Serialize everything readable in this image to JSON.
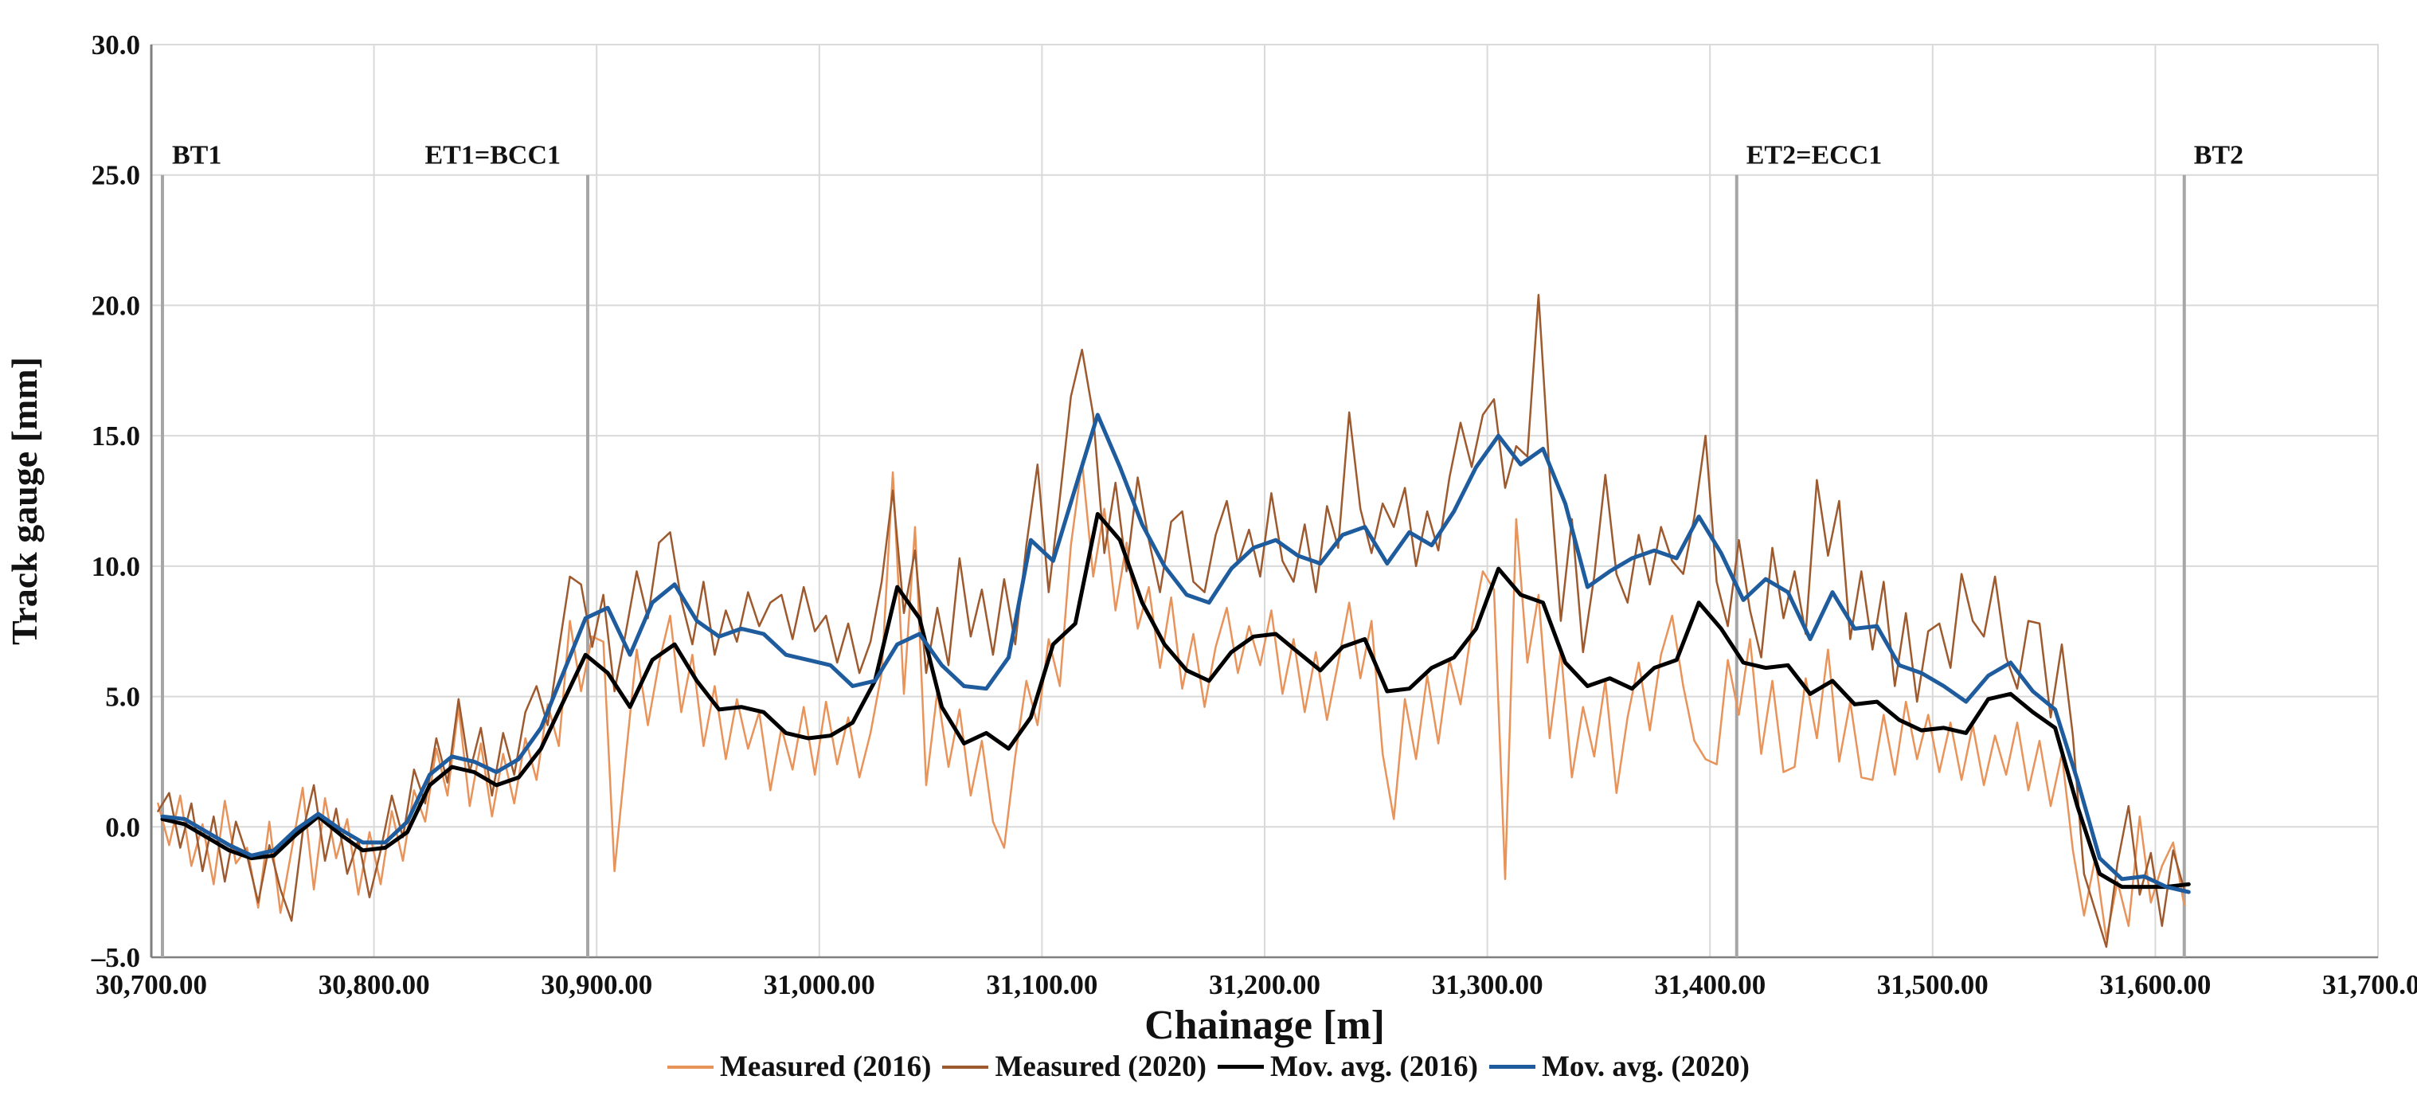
{
  "chart_data": {
    "type": "line",
    "title": "",
    "xlabel": "Chainage [m]",
    "ylabel": "Track gauge [mm]",
    "xlim": [
      30700,
      31700
    ],
    "ylim": [
      -5,
      30
    ],
    "x_tick_step": 100,
    "y_tick_step": 5,
    "grid": true,
    "legend_position": "bottom",
    "x_tick_labels": [
      "30,700.00",
      "30,800.00",
      "30,900.00",
      "31,000.00",
      "31,100.00",
      "31,200.00",
      "31,300.00",
      "31,400.00",
      "31,500.00",
      "31,600.00",
      "31,700.00"
    ],
    "y_tick_labels": [
      "30.0",
      "25.0",
      "20.0",
      "15.0",
      "10.0",
      "5.0",
      "0.0",
      "–5.0"
    ],
    "style": {
      "gridline_color": "#d9d9d9",
      "axis_line_color": "#7f7f7f",
      "marker_line_color": "#a6a6a6",
      "text_color": "#121212",
      "background": "#ffffff"
    },
    "markers": [
      {
        "label": "BT1",
        "x": 30705,
        "label_side": "right",
        "from_value": 25
      },
      {
        "label": "ET1=BCC1",
        "x": 30896,
        "label_side": "left",
        "from_value": 25
      },
      {
        "label": "ET2=ECC1",
        "x": 31412,
        "label_side": "right",
        "from_value": 25
      },
      {
        "label": "BT2",
        "x": 31613,
        "label_side": "right",
        "from_value": 25
      }
    ],
    "series": [
      {
        "name": "Measured (2016)",
        "color": "#e8935a",
        "width": 2.5,
        "start_x": 30703,
        "step": 5,
        "values": [
          0.9,
          -0.7,
          1.2,
          -1.5,
          0.1,
          -2.2,
          1.0,
          -1.4,
          -0.8,
          -3.1,
          0.2,
          -3.3,
          -0.9,
          1.5,
          -2.4,
          1.1,
          -1.2,
          0.3,
          -2.6,
          -0.2,
          -2.2,
          0.6,
          -1.3,
          1.4,
          0.2,
          3.0,
          1.2,
          4.6,
          0.8,
          3.2,
          0.4,
          2.8,
          0.9,
          3.4,
          1.8,
          4.7,
          3.1,
          7.9,
          5.2,
          7.3,
          7.1,
          -1.7,
          2.6,
          6.8,
          3.9,
          6.3,
          8.1,
          4.4,
          6.6,
          3.1,
          5.4,
          2.6,
          4.9,
          3.0,
          4.4,
          1.4,
          3.8,
          2.2,
          4.6,
          2.0,
          4.8,
          2.4,
          4.2,
          1.9,
          3.6,
          5.9,
          13.6,
          5.1,
          11.5,
          1.6,
          5.2,
          2.3,
          4.5,
          1.2,
          3.3,
          0.2,
          -0.8,
          2.7,
          5.6,
          3.9,
          7.2,
          5.4,
          10.8,
          14.0,
          9.6,
          12.2,
          8.3,
          10.9,
          7.6,
          9.2,
          6.1,
          8.8,
          5.3,
          7.4,
          4.6,
          6.9,
          8.4,
          5.9,
          7.7,
          6.2,
          8.3,
          5.1,
          7.2,
          4.4,
          6.7,
          4.1,
          6.3,
          8.6,
          5.7,
          7.9,
          2.8,
          0.3,
          4.9,
          2.6,
          5.8,
          3.2,
          6.4,
          4.7,
          7.6,
          9.8,
          9.1,
          -2.0,
          11.8,
          6.3,
          8.9,
          3.4,
          6.8,
          1.9,
          4.6,
          2.7,
          5.6,
          1.3,
          4.2,
          6.3,
          3.7,
          6.6,
          8.1,
          5.4,
          3.3,
          2.6,
          2.4,
          6.4,
          4.3,
          7.2,
          2.8,
          5.6,
          2.1,
          2.3,
          5.7,
          3.4,
          6.8,
          2.5,
          4.8,
          1.9,
          1.8,
          4.3,
          2.0,
          4.8,
          2.6,
          4.3,
          2.1,
          4.0,
          1.8,
          3.9,
          1.6,
          3.5,
          2.0,
          4.0,
          1.4,
          3.3,
          0.8,
          2.8,
          -0.9,
          -3.4,
          -1.2,
          -4.3,
          -2.1,
          -3.8,
          0.4,
          -2.9,
          -1.5,
          -0.6,
          -3.0
        ]
      },
      {
        "name": "Measured (2020)",
        "color": "#9e5a2f",
        "width": 2.5,
        "start_x": 30703,
        "step": 5,
        "values": [
          0.6,
          1.3,
          -0.8,
          0.9,
          -1.7,
          0.4,
          -2.1,
          0.2,
          -1.1,
          -2.9,
          -0.7,
          -2.4,
          -3.6,
          -0.2,
          1.6,
          -1.3,
          0.7,
          -1.8,
          -0.5,
          -2.7,
          -0.9,
          1.2,
          -0.4,
          2.2,
          0.9,
          3.4,
          1.7,
          4.9,
          2.1,
          3.8,
          1.2,
          3.6,
          2.0,
          4.4,
          5.4,
          3.9,
          6.8,
          9.6,
          9.3,
          6.9,
          8.9,
          5.2,
          7.4,
          9.8,
          8.0,
          10.9,
          11.3,
          8.7,
          7.0,
          9.4,
          6.6,
          8.3,
          7.1,
          9.0,
          7.7,
          8.6,
          8.9,
          7.2,
          9.2,
          7.5,
          8.1,
          6.3,
          7.8,
          5.9,
          7.1,
          9.4,
          12.9,
          8.2,
          10.6,
          5.9,
          8.4,
          6.2,
          10.3,
          7.3,
          9.1,
          6.6,
          9.5,
          7.0,
          10.8,
          13.9,
          9.0,
          12.6,
          16.5,
          18.3,
          15.8,
          10.5,
          13.2,
          9.8,
          13.4,
          11.0,
          9.0,
          11.7,
          12.1,
          9.4,
          9.0,
          11.2,
          12.5,
          10.1,
          11.4,
          9.6,
          12.8,
          10.2,
          9.4,
          11.6,
          9.0,
          12.3,
          10.7,
          15.9,
          12.2,
          10.5,
          12.4,
          11.5,
          13.0,
          10.0,
          12.1,
          10.6,
          13.4,
          15.5,
          13.8,
          15.8,
          16.4,
          13.0,
          14.6,
          14.2,
          20.4,
          13.5,
          7.9,
          11.8,
          6.7,
          9.6,
          13.5,
          9.7,
          8.6,
          11.2,
          9.3,
          11.5,
          10.2,
          9.7,
          11.9,
          15.0,
          9.4,
          7.7,
          11.0,
          8.3,
          6.5,
          10.7,
          8.0,
          9.8,
          7.4,
          13.3,
          10.4,
          12.5,
          7.2,
          9.8,
          6.8,
          9.4,
          5.4,
          8.2,
          4.8,
          7.5,
          7.8,
          6.1,
          9.7,
          7.9,
          7.3,
          9.6,
          6.5,
          5.3,
          7.9,
          7.8,
          4.2,
          7.0,
          3.5,
          -1.8,
          -3.2,
          -4.6,
          -1.4,
          0.8,
          -2.6,
          -1.0,
          -3.8,
          -0.9,
          -2.4
        ]
      },
      {
        "name": "Mov. avg. (2016)",
        "color": "#000000",
        "width": 5,
        "start_x": 30705,
        "step": 10,
        "values": [
          0.3,
          0.1,
          -0.4,
          -0.9,
          -1.2,
          -1.1,
          -0.3,
          0.4,
          -0.3,
          -0.9,
          -0.8,
          -0.2,
          1.6,
          2.3,
          2.1,
          1.6,
          1.9,
          3.0,
          4.8,
          6.6,
          5.9,
          4.6,
          6.4,
          7.0,
          5.6,
          4.5,
          4.6,
          4.4,
          3.6,
          3.4,
          3.5,
          4.0,
          5.6,
          9.2,
          8.0,
          4.6,
          3.2,
          3.6,
          3.0,
          4.2,
          7.0,
          7.8,
          12.0,
          11.0,
          8.6,
          7.0,
          6.0,
          5.6,
          6.7,
          7.3,
          7.4,
          6.7,
          6.0,
          6.9,
          7.2,
          5.2,
          5.3,
          6.1,
          6.5,
          7.6,
          9.9,
          8.9,
          8.6,
          6.3,
          5.4,
          5.7,
          5.3,
          6.1,
          6.4,
          8.6,
          7.6,
          6.3,
          6.1,
          6.2,
          5.1,
          5.6,
          4.7,
          4.8,
          4.1,
          3.7,
          3.8,
          3.6,
          4.9,
          5.1,
          4.4,
          3.8,
          0.8,
          -1.8,
          -2.3,
          -2.3,
          -2.3,
          -2.2
        ]
      },
      {
        "name": "Mov. avg. (2020)",
        "color": "#1f5c9e",
        "width": 5,
        "start_x": 30705,
        "step": 10,
        "values": [
          0.4,
          0.3,
          -0.2,
          -0.7,
          -1.1,
          -0.9,
          -0.1,
          0.5,
          -0.1,
          -0.6,
          -0.6,
          0.2,
          2.0,
          2.7,
          2.5,
          2.1,
          2.6,
          3.8,
          5.9,
          8.0,
          8.4,
          6.6,
          8.6,
          9.3,
          7.9,
          7.3,
          7.6,
          7.4,
          6.6,
          6.4,
          6.2,
          5.4,
          5.6,
          7.0,
          7.4,
          6.2,
          5.4,
          5.3,
          6.5,
          11.0,
          10.2,
          13.0,
          15.8,
          13.8,
          11.6,
          10.0,
          8.9,
          8.6,
          9.9,
          10.7,
          11.0,
          10.4,
          10.1,
          11.2,
          11.5,
          10.1,
          11.3,
          10.8,
          12.1,
          13.8,
          15.0,
          13.9,
          14.5,
          12.4,
          9.2,
          9.8,
          10.3,
          10.6,
          10.3,
          11.9,
          10.5,
          8.7,
          9.5,
          9.0,
          7.2,
          9.0,
          7.6,
          7.7,
          6.2,
          5.9,
          5.4,
          4.8,
          5.8,
          6.3,
          5.2,
          4.5,
          1.8,
          -1.2,
          -2.0,
          -1.9,
          -2.3,
          -2.5
        ]
      }
    ]
  }
}
